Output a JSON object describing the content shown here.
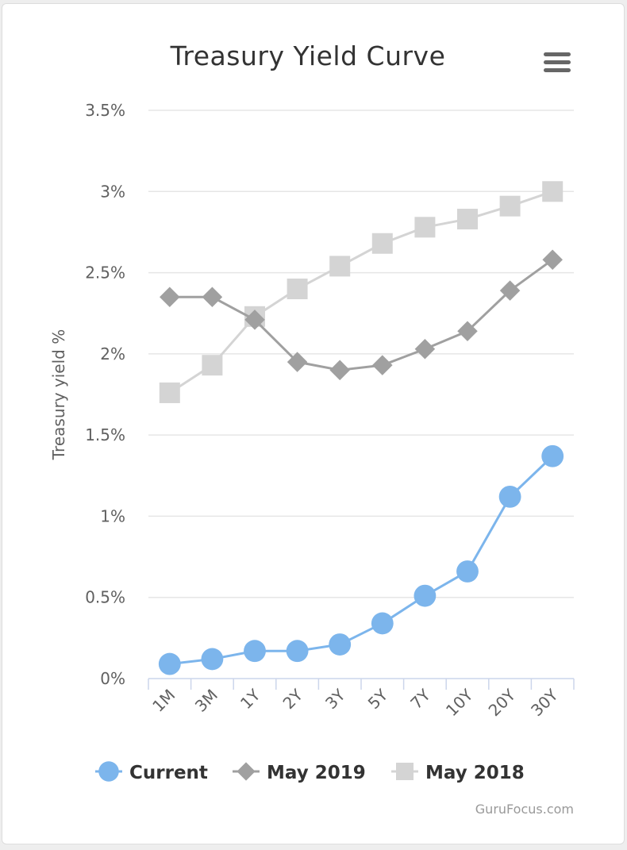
{
  "menu": {
    "icon": "hamburger-menu-icon"
  },
  "credits": "GuruFocus.com",
  "chart_data": {
    "type": "line",
    "title": "Treasury Yield Curve",
    "ylabel": "Treasury yield %",
    "xlabel": "",
    "categories": [
      "1M",
      "3M",
      "1Y",
      "2Y",
      "3Y",
      "5Y",
      "7Y",
      "10Y",
      "20Y",
      "30Y"
    ],
    "ylim": [
      0,
      3.5
    ],
    "yticks": [
      {
        "value": 0,
        "label": "0%"
      },
      {
        "value": 0.5,
        "label": "0.5%"
      },
      {
        "value": 1,
        "label": "1%"
      },
      {
        "value": 1.5,
        "label": "1.5%"
      },
      {
        "value": 2,
        "label": "2%"
      },
      {
        "value": 2.5,
        "label": "2.5%"
      },
      {
        "value": 3,
        "label": "3%"
      },
      {
        "value": 3.5,
        "label": "3.5%"
      }
    ],
    "grid": true,
    "legend": "bottom",
    "series": [
      {
        "name": "Current",
        "color": "#7cb5ec",
        "marker": "circle",
        "values": [
          0.09,
          0.12,
          0.17,
          0.17,
          0.21,
          0.34,
          0.51,
          0.66,
          1.12,
          1.37
        ]
      },
      {
        "name": "May 2019",
        "color": "#a0a0a0",
        "marker": "diamond",
        "values": [
          2.35,
          2.35,
          2.21,
          1.95,
          1.9,
          1.93,
          2.03,
          2.14,
          2.39,
          2.58
        ]
      },
      {
        "name": "May 2018",
        "color": "#d4d4d4",
        "marker": "square",
        "values": [
          1.76,
          1.93,
          2.23,
          2.4,
          2.54,
          2.68,
          2.78,
          2.83,
          2.91,
          3.0
        ]
      }
    ]
  }
}
